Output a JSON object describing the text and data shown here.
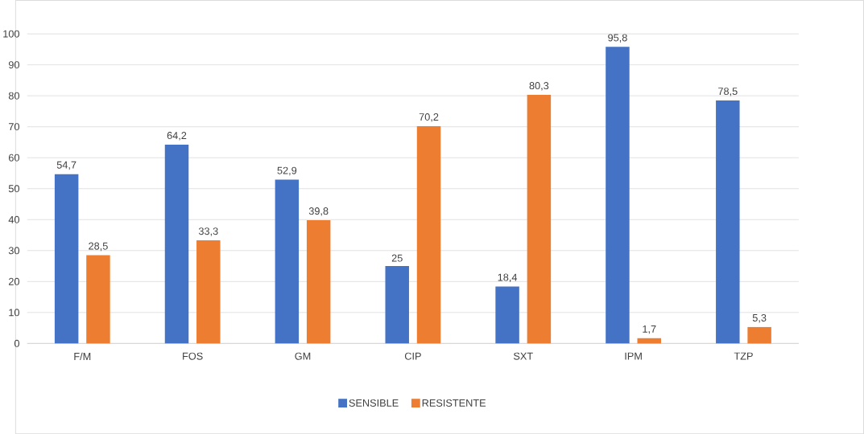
{
  "chart_data": {
    "type": "bar",
    "categories": [
      "F/M",
      "FOS",
      "GM",
      "CIP",
      "SXT",
      "IPM",
      "TZP"
    ],
    "series": [
      {
        "name": "SENSIBLE",
        "color": "#4472c4",
        "values": [
          54.7,
          64.2,
          52.9,
          25,
          18.4,
          95.8,
          78.5
        ],
        "value_labels": [
          "54,7",
          "64,2",
          "52,9",
          "25",
          "18,4",
          "95,8",
          "78,5"
        ]
      },
      {
        "name": "RESISTENTE",
        "color": "#ed7d31",
        "values": [
          28.5,
          33.3,
          39.8,
          70.2,
          80.3,
          1.7,
          5.3
        ],
        "value_labels": [
          "28,5",
          "33,3",
          "39,8",
          "70,2",
          "80,3",
          "1,7",
          "5,3"
        ]
      }
    ],
    "ylim": [
      0,
      100
    ],
    "yticks": [
      0,
      10,
      20,
      30,
      40,
      50,
      60,
      70,
      80,
      90,
      100
    ],
    "grid": "y",
    "legend": "bottom"
  }
}
